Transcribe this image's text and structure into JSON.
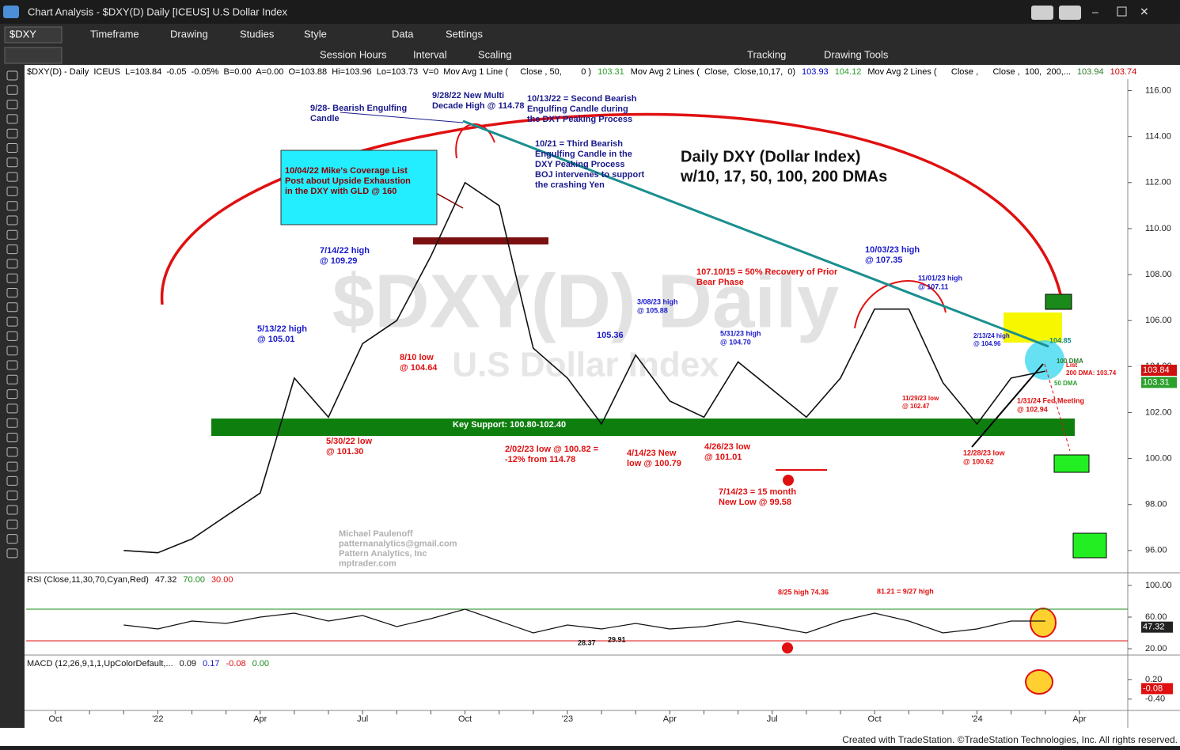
{
  "window": {
    "title": "Chart Analysis - $DXY(D) Daily [ICEUS] U.S Dollar Index"
  },
  "toolbar": {
    "symbol": "$DXY",
    "items": [
      "Timeframe",
      "Drawing",
      "Studies",
      "Style",
      "Data",
      "Settings"
    ]
  },
  "toolbar2": {
    "items": [
      "Session Hours",
      "Interval",
      "Scaling",
      "Tracking",
      "Drawing Tools"
    ]
  },
  "info_line": [
    {
      "text": "$DXY(D) - Daily  ICEUS  L=103.84  -0.05  -0.05%  B=0.00  A=0.00  O=103.88  Hi=103.96  Lo=103.73  V=0  Mov Avg 1 Line (     Close , 50,        0 )",
      "color": "#000000"
    },
    {
      "text": "103.31",
      "color": "#2ca02c"
    },
    {
      "text": "Mov Avg 2 Lines (  Close,  Close,10,17,  0)",
      "color": "#000000"
    },
    {
      "text": "103.93",
      "color": "#0000cc"
    },
    {
      "text": "104.12",
      "color": "#2ca02c"
    },
    {
      "text": "Mov Avg 2 Lines (      Close ,      Close ,  100,  200,...",
      "color": "#000000"
    },
    {
      "text": "103.94",
      "color": "#2a7a2a"
    },
    {
      "text": "103.74",
      "color": "#cc0000"
    }
  ],
  "chart_data": {
    "type": "line",
    "title": "Daily DXY (Dollar Index)",
    "subtitle": "w/10, 17, 50, 100, 200 DMAs",
    "watermark": [
      "$DXY(D) Daily",
      "U.S Dollar Index"
    ],
    "categories": [
      "Oct",
      null,
      null,
      "'22",
      null,
      null,
      "Apr",
      null,
      null,
      "Jul",
      null,
      null,
      "Oct",
      null,
      null,
      "'23",
      null,
      null,
      "Apr",
      null,
      null,
      "Jul",
      null,
      null,
      "Oct",
      null,
      null,
      "'24",
      null,
      null,
      "Apr"
    ],
    "series": [
      {
        "name": "$DXY(D)",
        "color": "#111111",
        "values": [
          null,
          null,
          96.0,
          95.9,
          96.5,
          97.5,
          98.5,
          103.5,
          101.8,
          105.0,
          106.0,
          108.8,
          112.0,
          111.0,
          104.8,
          103.5,
          101.5,
          104.5,
          102.5,
          101.8,
          104.2,
          103.0,
          101.8,
          103.5,
          106.5,
          106.5,
          103.3,
          101.5,
          103.5,
          103.8,
          null
        ]
      }
    ],
    "ylim": [
      95.1,
      116.5
    ],
    "yticks": [
      {
        "value": 96,
        "label": "96.00"
      },
      {
        "value": 98,
        "label": "98.00"
      },
      {
        "value": 100,
        "label": "100.00"
      },
      {
        "value": 102,
        "label": "102.00"
      },
      {
        "value": 104,
        "label": "104.00"
      },
      {
        "value": 106,
        "label": "106.00"
      },
      {
        "value": 108,
        "label": "108.00"
      },
      {
        "value": 110,
        "label": "110.00"
      },
      {
        "value": 112,
        "label": "112.00"
      },
      {
        "value": 114,
        "label": "114.00"
      },
      {
        "value": 116,
        "label": "116.00"
      }
    ],
    "badges": [
      {
        "value": 103.84,
        "label": "103.84",
        "color": "#d01010"
      },
      {
        "value": 103.31,
        "label": "103.31",
        "color": "#2ca02c"
      }
    ],
    "annotations": [
      {
        "lines": [
          "9/28- Bearish Engulfing",
          "Candle"
        ],
        "color": "#1a1a8c"
      },
      {
        "lines": [
          "9/28/22 New Multi",
          "Decade High @ 114.78"
        ],
        "color": "#1a1a8c"
      },
      {
        "lines": [
          "10/13/22 = Second Bearish",
          "Engulfing Candle during",
          "the DXY Peaking Process"
        ],
        "color": "#1a1a8c"
      },
      {
        "lines": [
          "10/21 = Third Bearish",
          "Engulfing Candle in the",
          "DXY Peaking Process",
          "BOJ intervenes to support",
          "the crashing Yen"
        ],
        "color": "#1a1a8c"
      },
      {
        "lines": [
          "10/04/22 Mike's Coverage List",
          "Post about Upside Exhaustion",
          "in the DXY with GLD @ 160"
        ],
        "color": "#8b0000"
      },
      {
        "lines": [
          "7/14/22 high",
          "@ 109.29"
        ],
        "color": "#1a1acc"
      },
      {
        "lines": [
          "5/13/22 high",
          "@ 105.01"
        ],
        "color": "#1a1acc"
      },
      {
        "lines": [
          "8/10 low",
          "@ 104.64"
        ],
        "color": "#e01010"
      },
      {
        "lines": [
          "5/30/22 low",
          "@ 101.30"
        ],
        "color": "#e01010"
      },
      {
        "lines": [
          "Key Support: 100.80-102.40"
        ],
        "color": "#ffffff"
      },
      {
        "lines": [
          "2/02/23 low @ 100.82 =",
          "-12% from 114.78"
        ],
        "color": "#e01010"
      },
      {
        "lines": [
          "4/14/23 New",
          "low @ 100.79"
        ],
        "color": "#e01010"
      },
      {
        "lines": [
          "4/26/23 low",
          "@ 101.01"
        ],
        "color": "#e01010"
      },
      {
        "lines": [
          "7/14/23 = 15 month",
          "New Low @ 99.58"
        ],
        "color": "#e01010"
      },
      {
        "lines": [
          "105.36"
        ],
        "color": "#1a1acc"
      },
      {
        "lines": [
          "3/08/23 high",
          "@ 105.88"
        ],
        "color": "#1a1acc"
      },
      {
        "lines": [
          "5/31/23 high",
          "@ 104.70"
        ],
        "color": "#1a1acc"
      },
      {
        "lines": [
          "107.10/15 = 50% Recovery of Prior",
          "Bear Phase"
        ],
        "color": "#e01010"
      },
      {
        "lines": [
          "10/03/23 high",
          "@ 107.35"
        ],
        "color": "#1a1acc"
      },
      {
        "lines": [
          "11/01/23 high",
          "@ 107.11"
        ],
        "color": "#1a1acc"
      },
      {
        "lines": [
          "2/13/24 high",
          "@ 104.96"
        ],
        "color": "#1a1acc"
      },
      {
        "lines": [
          "11/29/23 low",
          "@ 102.47"
        ],
        "color": "#e01010"
      },
      {
        "lines": [
          "12/28/23 low",
          "@ 100.62"
        ],
        "color": "#e01010"
      },
      {
        "lines": [
          "1/31/24 Fed Meeting",
          "@ 102.94"
        ],
        "color": "#e01010"
      },
      {
        "lines": [
          "104.85"
        ],
        "color": "#138a8a"
      },
      {
        "lines": [
          "100 DMA"
        ],
        "color": "#2a7a2a"
      },
      {
        "lines": [
          "List",
          "200 DMA: 103.74"
        ],
        "color": "#e01010"
      },
      {
        "lines": [
          "50 DMA"
        ],
        "color": "#2ca02c"
      }
    ],
    "author": [
      "Michael Paulenoff",
      "patternanalytics@gmail.com",
      "Pattern Analytics, Inc",
      "mptrader.com"
    ]
  },
  "rsi": {
    "header": "RSI (Close,11,30,70,Cyan,Red)",
    "header_values": [
      "47.32",
      "70.00",
      "30.00"
    ],
    "levels": [
      {
        "value": 70,
        "label": "70.00"
      },
      {
        "value": 30,
        "label": "30.00"
      }
    ],
    "values": [
      null,
      null,
      50,
      45,
      55,
      52,
      60,
      65,
      55,
      62,
      48,
      58,
      70,
      55,
      40,
      50,
      45,
      52,
      45,
      48,
      55,
      48,
      40,
      55,
      65,
      55,
      40,
      45,
      55,
      55,
      null
    ],
    "ylim": [
      12,
      116
    ],
    "yticks": [
      {
        "value": 100,
        "label": "100.00"
      },
      {
        "value": 60,
        "label": "60.00"
      },
      {
        "value": 20,
        "label": "20.00"
      }
    ],
    "badge": {
      "value": 47.32,
      "label": "47.32"
    },
    "annotations": [
      "8/25 high 74.36",
      "81.21 = 9/27 high",
      "28.37",
      "29.91"
    ]
  },
  "macd": {
    "header": "MACD (12,26,9,1,1,UpColorDefault,...",
    "header_values": [
      "0.09",
      "0.17",
      "-0.08",
      "0.00"
    ],
    "ylim": [
      -0.75,
      0.95
    ],
    "yticks": [
      {
        "value": 0.2,
        "label": "0.20"
      },
      {
        "value": -0.4,
        "label": "-0.40"
      }
    ],
    "badge": {
      "value": -0.08,
      "label": "-0.08"
    }
  },
  "footer": "Created with TradeStation. ©TradeStation Technologies, Inc. All rights reserved."
}
